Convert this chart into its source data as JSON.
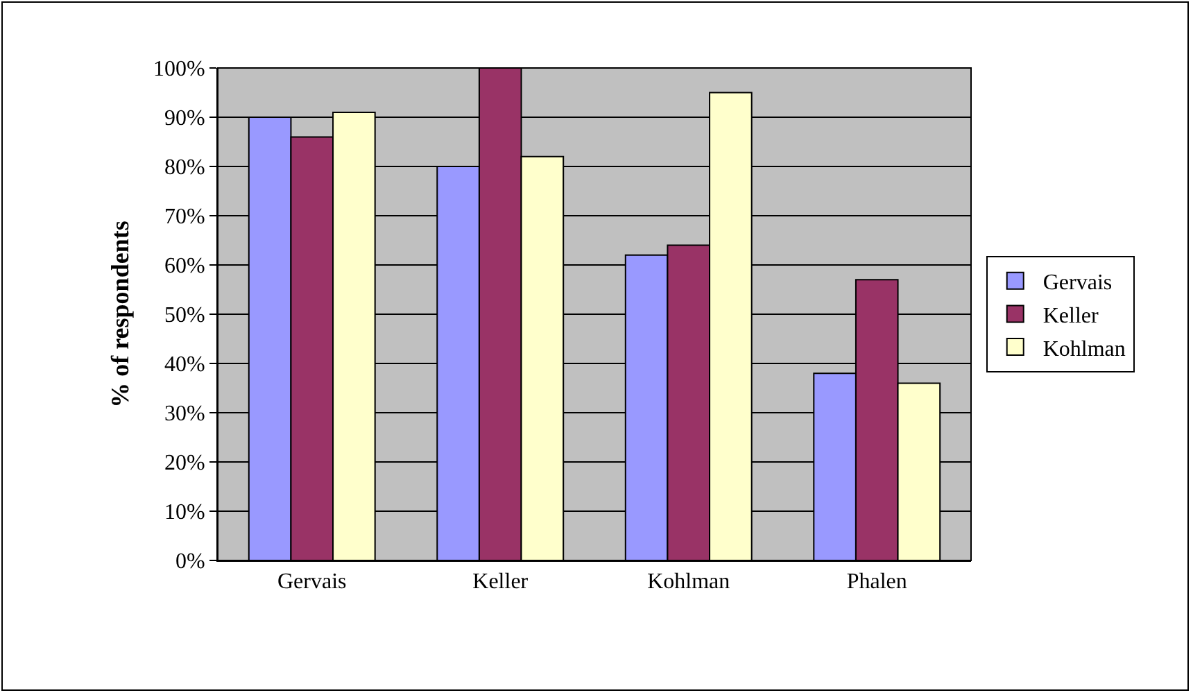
{
  "chart_data": {
    "type": "bar",
    "ylabel": "% of respondents",
    "categories": [
      "Gervais",
      "Keller",
      "Kohlman",
      "Phalen"
    ],
    "series": [
      {
        "name": "Gervais",
        "color": "#9999ff",
        "values": [
          90,
          80,
          62,
          38
        ]
      },
      {
        "name": "Keller",
        "color": "#993366",
        "values": [
          86,
          100,
          64,
          57
        ]
      },
      {
        "name": "Kohlman",
        "color": "#ffffcc",
        "values": [
          91,
          82,
          95,
          36
        ]
      }
    ],
    "ylim": [
      0,
      100
    ],
    "yticks": [
      {
        "value": 0,
        "label": "0%"
      },
      {
        "value": 10,
        "label": "10%"
      },
      {
        "value": 20,
        "label": "20%"
      },
      {
        "value": 30,
        "label": "30%"
      },
      {
        "value": 40,
        "label": "40%"
      },
      {
        "value": 50,
        "label": "50%"
      },
      {
        "value": 60,
        "label": "60%"
      },
      {
        "value": 70,
        "label": "70%"
      },
      {
        "value": 80,
        "label": "80%"
      },
      {
        "value": 90,
        "label": "90%"
      },
      {
        "value": 100,
        "label": "100%"
      }
    ],
    "grid": "y",
    "legend": "right"
  }
}
